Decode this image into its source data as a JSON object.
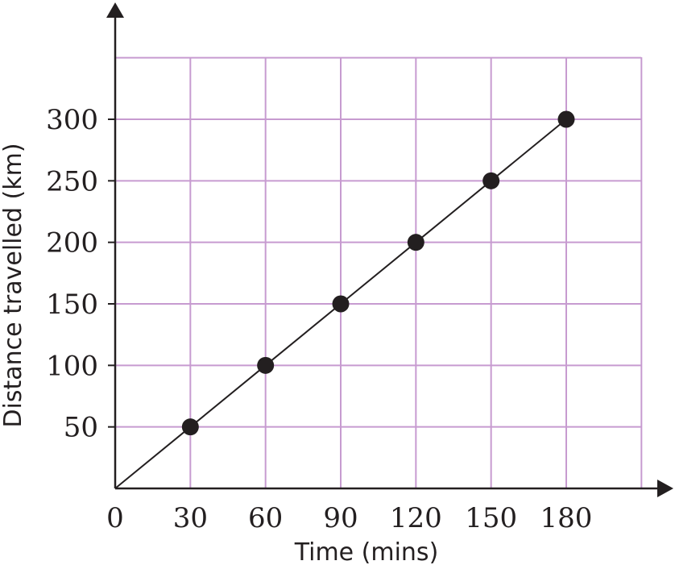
{
  "chart_data": {
    "type": "line",
    "title": "",
    "xlabel": "Time (mins)",
    "ylabel": "Distance travelled (km)",
    "xlim": [
      0,
      210
    ],
    "ylim": [
      0,
      350
    ],
    "grid": true,
    "x_ticks": [
      0,
      30,
      60,
      90,
      120,
      150,
      180
    ],
    "y_ticks": [
      50,
      100,
      150,
      200,
      250,
      300
    ],
    "x_tick_labels": [
      "0",
      "30",
      "60",
      "90",
      "120",
      "150",
      "180"
    ],
    "y_tick_labels": [
      "50",
      "100",
      "150",
      "200",
      "250",
      "300"
    ],
    "series": [
      {
        "x": [
          30,
          60,
          90,
          120,
          150,
          180
        ],
        "y": [
          50,
          100,
          150,
          200,
          250,
          300
        ],
        "line_from_origin": true,
        "markers": true
      }
    ],
    "colors": {
      "grid": "#c79bd0",
      "axis": "#231f20",
      "line": "#231f20",
      "marker": "#231f20"
    }
  }
}
